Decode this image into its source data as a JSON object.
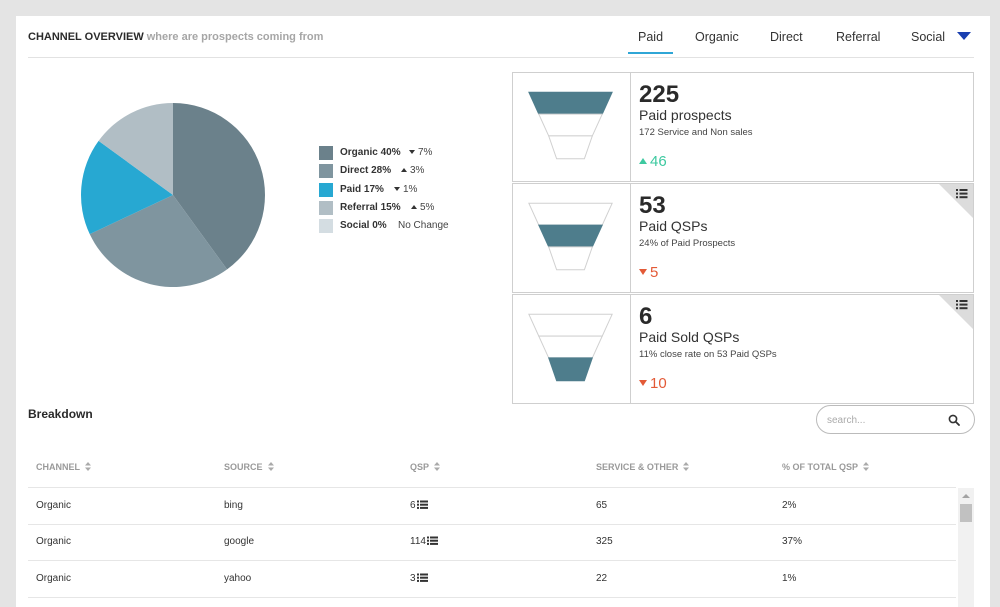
{
  "header": {
    "title": "CHANNEL OVERVIEW",
    "subtitle": "where are prospects coming from"
  },
  "tabs": [
    {
      "label": "Paid",
      "active": true
    },
    {
      "label": "Organic",
      "active": false
    },
    {
      "label": "Direct",
      "active": false
    },
    {
      "label": "Referral",
      "active": false
    },
    {
      "label": "Social",
      "active": false
    }
  ],
  "colors": {
    "accent": "#2fa6d6",
    "up": "#3dc9a0",
    "down": "#e35a37",
    "funnel": "#4e7d8c",
    "dropdown": "#1a3fb0"
  },
  "chart_data": {
    "type": "pie",
    "slices": [
      {
        "label": "Organic 40%",
        "value": 40,
        "change": "7%",
        "direction": "down",
        "color": "#6b818b"
      },
      {
        "label": "Direct 28%",
        "value": 28,
        "change": "3%",
        "direction": "up",
        "color": "#7f959f"
      },
      {
        "label": "Paid 17%",
        "value": 17,
        "change": "1%",
        "direction": "down",
        "color": "#27a8d2"
      },
      {
        "label": "Referral 15%",
        "value": 15,
        "change": "5%",
        "direction": "up",
        "color": "#b1bec5"
      },
      {
        "label": "Social 0%",
        "value": 0,
        "change": "No Change",
        "direction": "none",
        "color": "#d4dde2"
      }
    ]
  },
  "cards": [
    {
      "number": "225",
      "title": "Paid prospects",
      "desc": "172 Service and Non sales",
      "delta": "46",
      "direction": "up",
      "stage": 0,
      "has_list": false
    },
    {
      "number": "53",
      "title": "Paid QSPs",
      "desc": "24% of Paid Prospects",
      "delta": "5",
      "direction": "down",
      "stage": 1,
      "has_list": true
    },
    {
      "number": "6",
      "title": "Paid Sold QSPs",
      "desc": "11% close rate on 53 Paid QSPs",
      "delta": "10",
      "direction": "down",
      "stage": 2,
      "has_list": true
    }
  ],
  "breakdown": {
    "title": "Breakdown",
    "search_placeholder": "search...",
    "columns": [
      "CHANNEL",
      "SOURCE",
      "QSP",
      "SERVICE & OTHER",
      "% OF TOTAL QSP"
    ],
    "rows": [
      {
        "channel": "Organic",
        "source": "bing",
        "qsp": "6",
        "service": "65",
        "pct": "2%"
      },
      {
        "channel": "Organic",
        "source": "google",
        "qsp": "114",
        "service": "325",
        "pct": "37%"
      },
      {
        "channel": "Organic",
        "source": "yahoo",
        "qsp": "3",
        "service": "22",
        "pct": "1%"
      }
    ]
  }
}
